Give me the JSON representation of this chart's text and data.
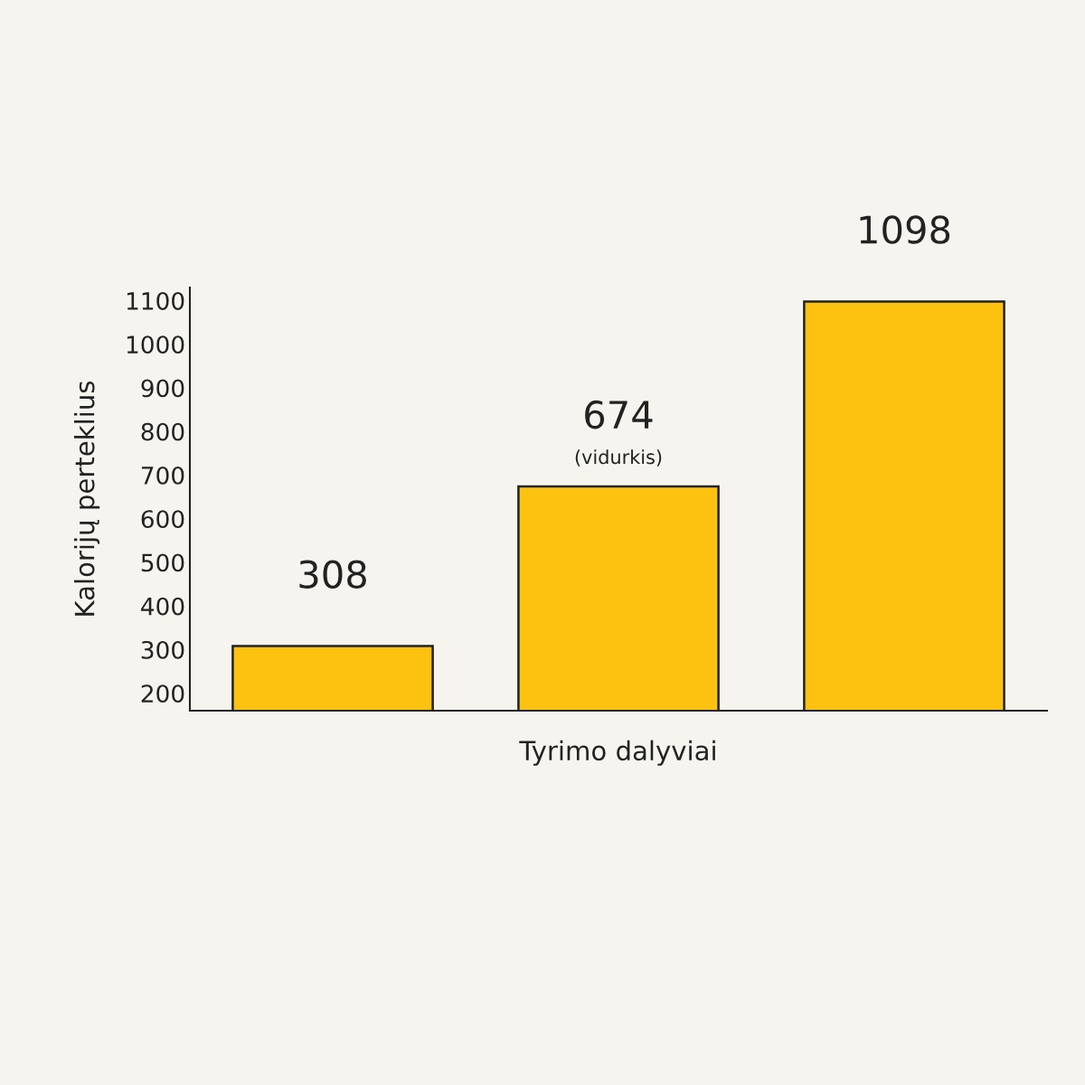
{
  "chart_data": {
    "type": "bar",
    "xlabel": "Tyrimo dalyviai",
    "ylabel": "Kalorijų perteklius",
    "categories": [
      null,
      null,
      null
    ],
    "values": [
      308,
      674,
      1098
    ],
    "color": "#fdc210",
    "ylim": [
      160,
      1130
    ],
    "yticks": [
      200,
      300,
      400,
      500,
      600,
      700,
      800,
      900,
      1000,
      1100
    ],
    "data_labels": true,
    "grid": false,
    "annotations": [
      {
        "text": "(vidurkis)",
        "y": 674
      }
    ]
  }
}
